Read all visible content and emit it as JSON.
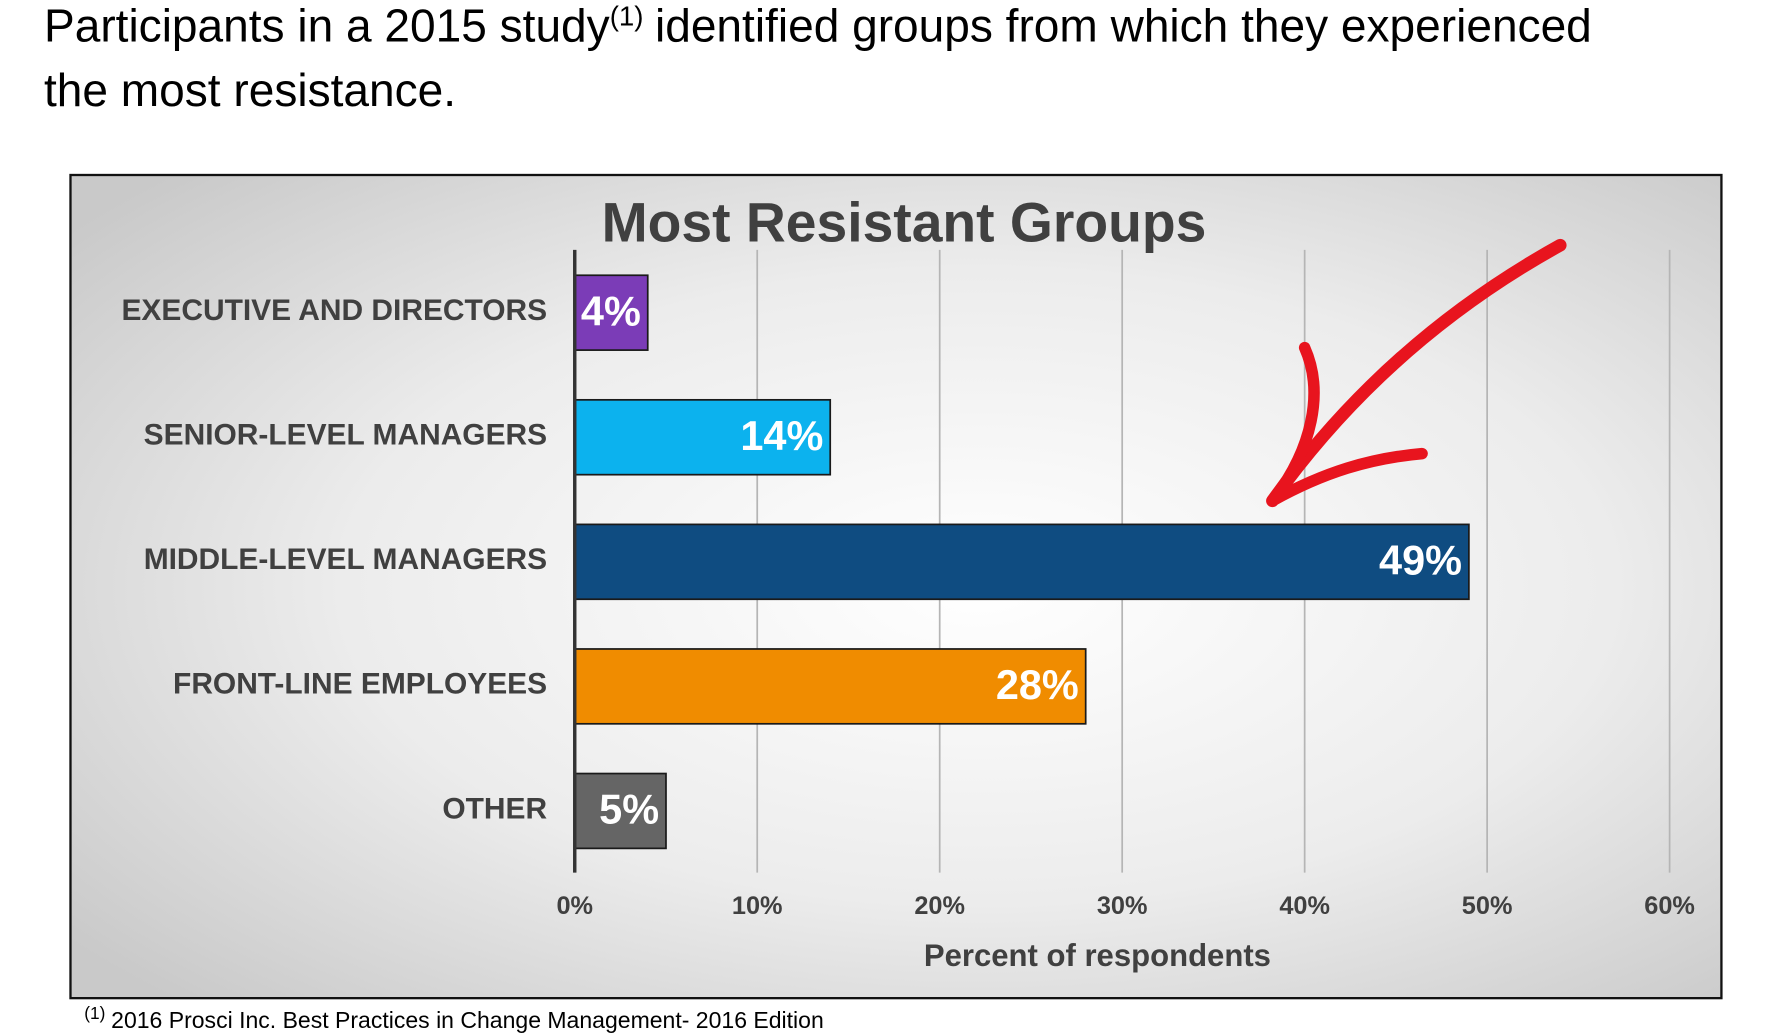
{
  "heading": {
    "part1": "Participants in a 2015 study",
    "ref": "(1)",
    "part2": "identified groups from which they experienced",
    "part3": "the most resistance."
  },
  "chart_data": {
    "type": "hbar",
    "title": "Most Resistant Groups",
    "categories": [
      "EXECUTIVE AND DIRECTORS",
      "SENIOR-LEVEL MANAGERS",
      "MIDDLE-LEVEL MANAGERS",
      "FRONT-LINE EMPLOYEES",
      "OTHER"
    ],
    "values": [
      4,
      14,
      49,
      28,
      5
    ],
    "value_labels": [
      "4%",
      "14%",
      "49%",
      "28%",
      "5%"
    ],
    "colors": [
      "#7b3cb7",
      "#0cb2ee",
      "#0f4c81",
      "#f08c00",
      "#656565"
    ],
    "xlabel": "Percent of respondents",
    "xlim": [
      0,
      60
    ],
    "xticks": [
      {
        "value": 0,
        "label": "0%"
      },
      {
        "value": 10,
        "label": "10%"
      },
      {
        "value": 20,
        "label": "20%"
      },
      {
        "value": 30,
        "label": "30%"
      },
      {
        "value": 40,
        "label": "40%"
      },
      {
        "value": 50,
        "label": "50%"
      },
      {
        "value": 60,
        "label": "60%"
      }
    ],
    "grid": true
  },
  "footnote": {
    "ref": "(1)",
    "text": "2016 Prosci Inc. Best Practices in Change Management- 2016 Edition"
  }
}
